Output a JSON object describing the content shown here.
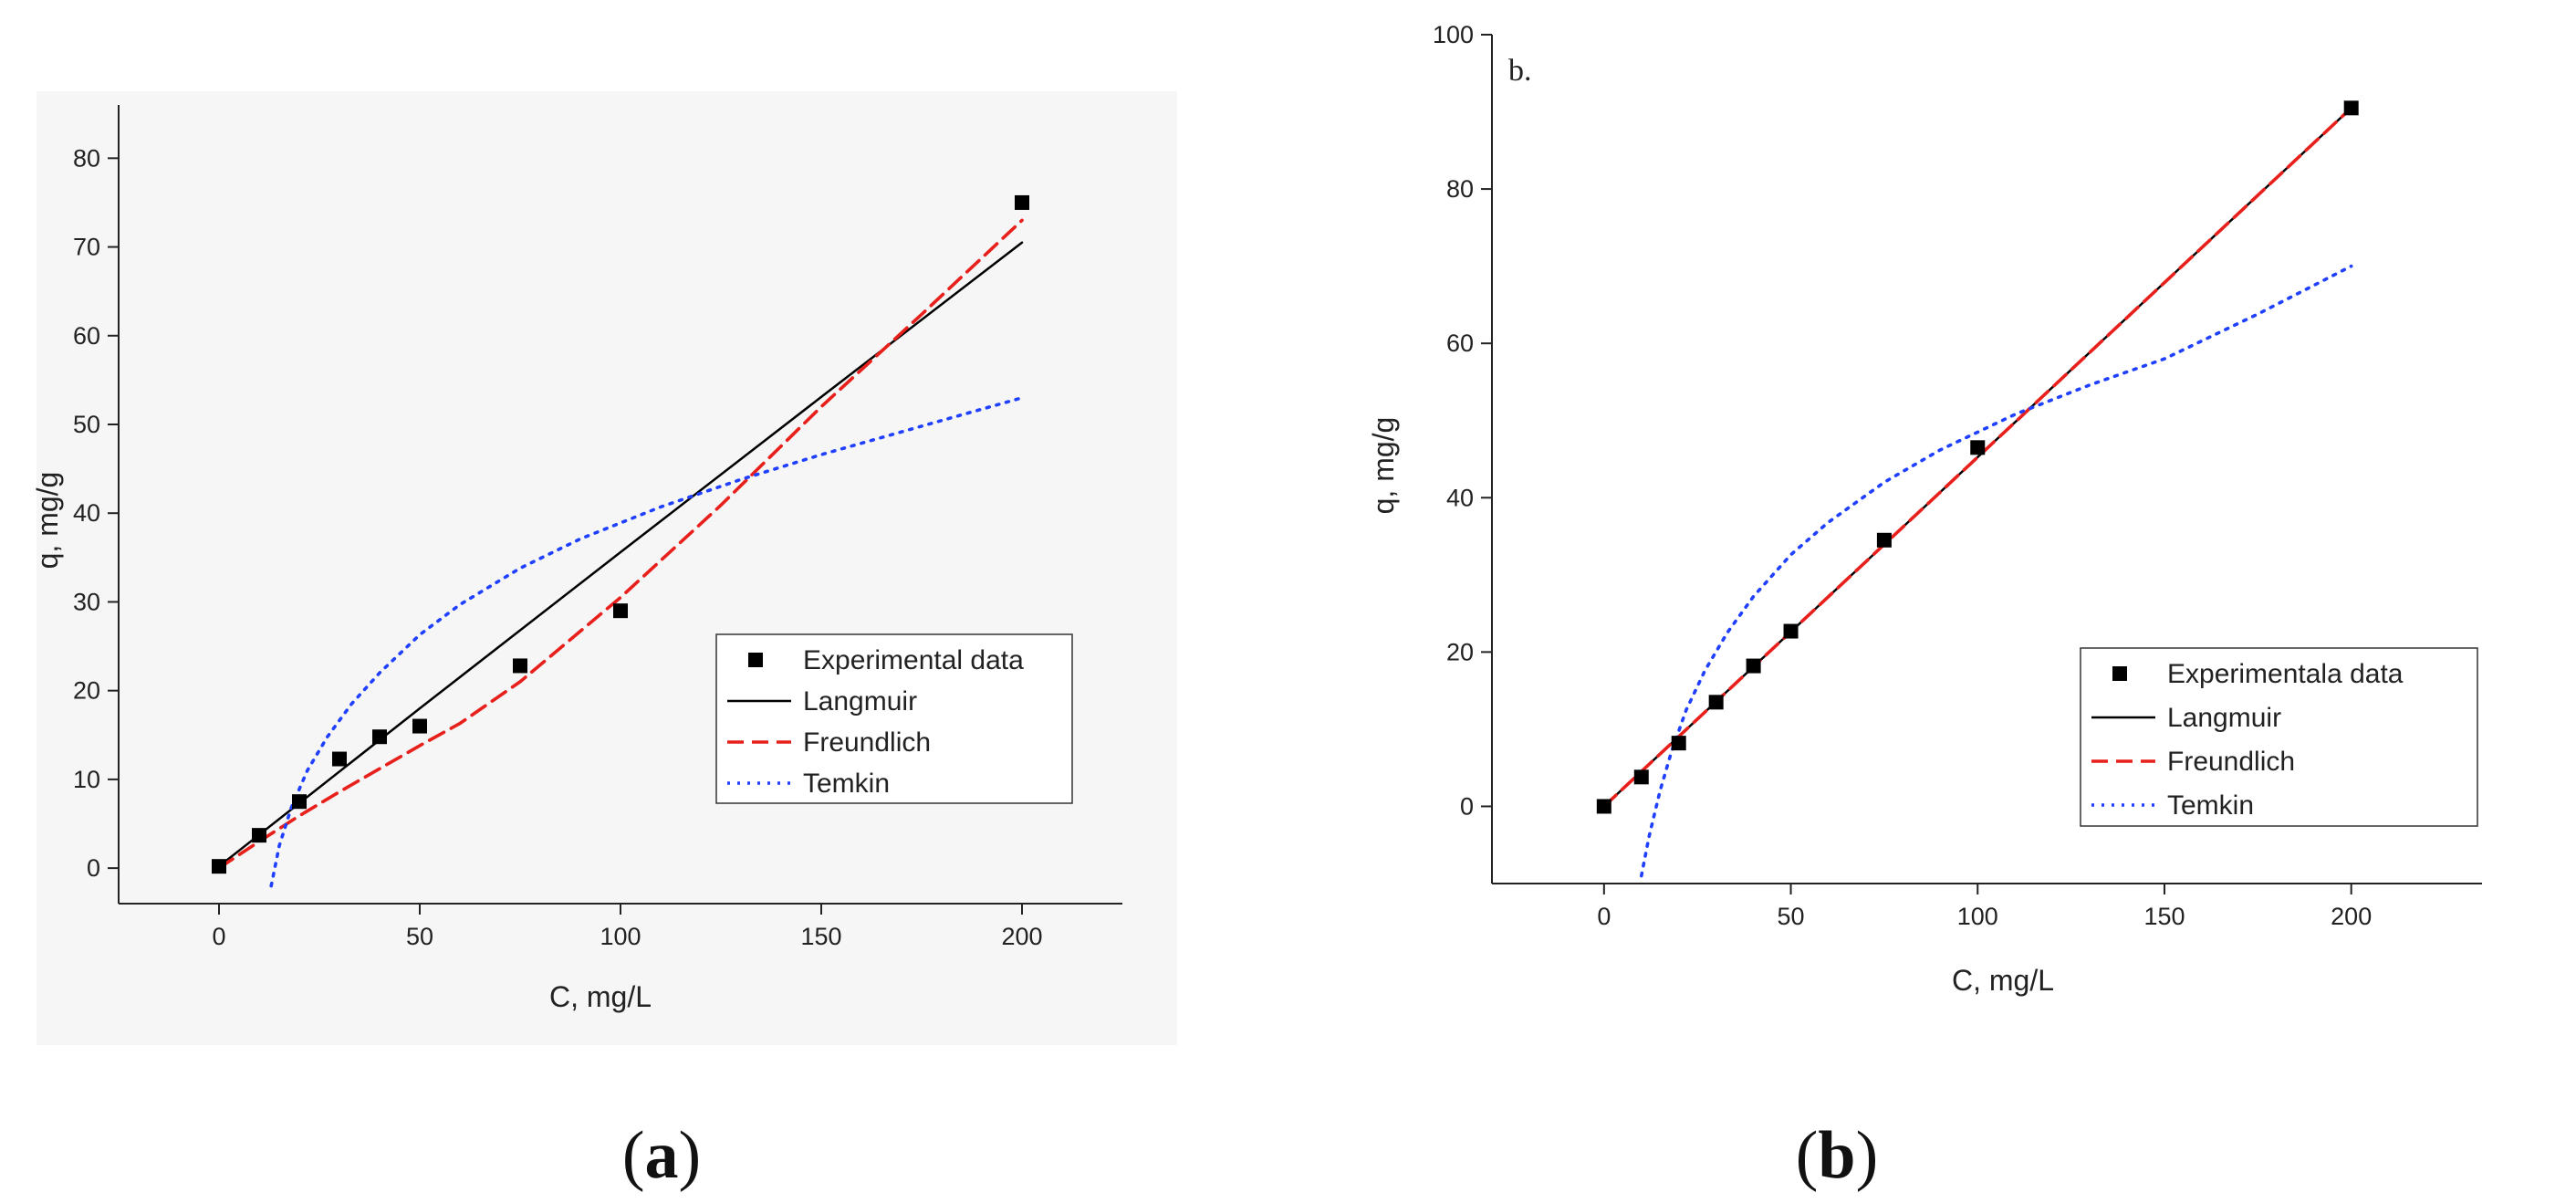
{
  "chart_data": [
    {
      "type": "scatter",
      "panel": "a",
      "caption_open": "(",
      "caption_letter": "a",
      "caption_close": ")",
      "panel_tag": "",
      "xlabel": "C, mg/L",
      "ylabel": "q, mg/g",
      "xlim": [
        -25,
        225
      ],
      "ylim": [
        -4,
        86
      ],
      "xticks": [
        0,
        50,
        100,
        150,
        200
      ],
      "yticks": [
        0,
        10,
        20,
        30,
        40,
        50,
        60,
        70,
        80
      ],
      "grid": false,
      "legend_position": "center-right",
      "series": [
        {
          "name": "Experimental data",
          "kind": "markers",
          "color": "#000000",
          "x": [
            0,
            10,
            20,
            30,
            40,
            50,
            75,
            100,
            200
          ],
          "y": [
            0.2,
            3.7,
            7.5,
            12.3,
            14.8,
            16.0,
            22.8,
            29.0,
            75.0
          ]
        },
        {
          "name": "Langmuir",
          "kind": "solid",
          "color": "#000000",
          "x": [
            0,
            50,
            100,
            150,
            200
          ],
          "y": [
            0.2,
            18.0,
            35.6,
            53.1,
            70.5
          ]
        },
        {
          "name": "Freundlich",
          "kind": "dashed",
          "color": "#e8201c",
          "x": [
            0,
            10,
            20,
            30,
            40,
            50,
            60,
            75,
            100,
            125,
            150,
            175,
            200
          ],
          "y": [
            0.0,
            3.0,
            5.9,
            8.6,
            11.2,
            13.8,
            16.3,
            21.0,
            30.5,
            40.9,
            52.0,
            62.4,
            73.0
          ]
        },
        {
          "name": "Temkin",
          "kind": "dotted",
          "color": "#2040ff",
          "x": [
            13,
            15,
            18,
            22,
            27,
            33,
            40,
            50,
            60,
            75,
            90,
            110,
            130,
            150,
            175,
            200
          ],
          "y": [
            -2.0,
            2.5,
            6.8,
            11.0,
            14.8,
            18.5,
            22.0,
            26.3,
            29.7,
            33.8,
            37.1,
            40.7,
            43.8,
            46.6,
            49.8,
            53.0
          ]
        }
      ]
    },
    {
      "type": "scatter",
      "panel": "b",
      "caption_open": "(",
      "caption_letter": "b",
      "caption_close": ")",
      "panel_tag": "b.",
      "xlabel": "C, mg/L",
      "ylabel": "q, mg/g",
      "xlim": [
        -30,
        235
      ],
      "ylim": [
        -10,
        100
      ],
      "xticks": [
        0,
        50,
        100,
        150,
        200
      ],
      "yticks": [
        0,
        20,
        40,
        60,
        80,
        100
      ],
      "grid": false,
      "legend_position": "center-right",
      "series": [
        {
          "name": "Experimentala data",
          "kind": "markers",
          "color": "#000000",
          "x": [
            0,
            10,
            20,
            30,
            40,
            50,
            75,
            100,
            200
          ],
          "y": [
            0.0,
            3.8,
            8.2,
            13.5,
            18.2,
            22.7,
            34.5,
            46.5,
            90.5
          ]
        },
        {
          "name": "Langmuir",
          "kind": "solid",
          "color": "#000000",
          "x": [
            0,
            200
          ],
          "y": [
            0.0,
            90.5
          ]
        },
        {
          "name": "Freundlich",
          "kind": "dashed",
          "color": "#e8201c",
          "x": [
            0,
            200
          ],
          "y": [
            0.0,
            90.5
          ]
        },
        {
          "name": "Temkin",
          "kind": "dotted",
          "color": "#2040ff",
          "x": [
            10,
            12,
            15,
            18,
            22,
            27,
            33,
            40,
            50,
            60,
            75,
            90,
            110,
            130,
            150,
            175,
            200
          ],
          "y": [
            -9.0,
            -4.0,
            2.0,
            7.0,
            12.5,
            17.6,
            22.5,
            27.2,
            32.6,
            36.8,
            42.0,
            46.2,
            50.8,
            54.6,
            58.0,
            63.8,
            70.0
          ]
        }
      ]
    }
  ]
}
